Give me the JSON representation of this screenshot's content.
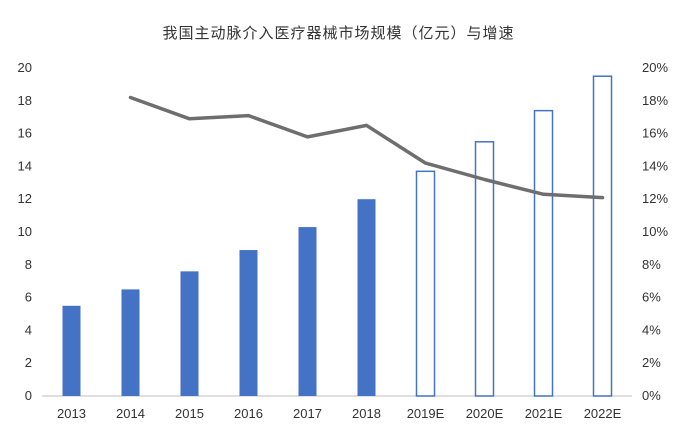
{
  "chart_data": {
    "type": "bar",
    "title": "我国主动脉介入医疗器械市场规模（亿元）与增速",
    "categories": [
      "2013",
      "2014",
      "2015",
      "2016",
      "2017",
      "2018",
      "2019E",
      "2020E",
      "2021E",
      "2022E"
    ],
    "series": [
      {
        "type": "bar",
        "axis": "left",
        "values": [
          5.5,
          6.5,
          7.6,
          8.9,
          10.3,
          12.0,
          13.7,
          15.5,
          17.4,
          19.5
        ],
        "forecast_flags": [
          false,
          false,
          false,
          false,
          false,
          false,
          true,
          true,
          true,
          true
        ]
      },
      {
        "type": "line",
        "axis": "right",
        "values": [
          null,
          18.2,
          16.9,
          17.1,
          15.8,
          16.5,
          14.2,
          13.2,
          12.3,
          12.1
        ]
      }
    ],
    "y_left": {
      "min": 0,
      "max": 20,
      "step": 2,
      "ticks": [
        "0",
        "2",
        "4",
        "6",
        "8",
        "10",
        "12",
        "14",
        "16",
        "18",
        "20"
      ]
    },
    "y_right": {
      "min": 0,
      "max": 20,
      "step": 2,
      "ticks": [
        "0%",
        "2%",
        "4%",
        "6%",
        "8%",
        "10%",
        "12%",
        "14%",
        "16%",
        "18%",
        "20%"
      ]
    },
    "grid": false,
    "legend": "none",
    "colors": {
      "bar_fill": "#4472C4",
      "bar_outline": "#4472C4",
      "line": "#6E6E6E",
      "axis": "#BFBFBF",
      "text": "#333333"
    }
  }
}
